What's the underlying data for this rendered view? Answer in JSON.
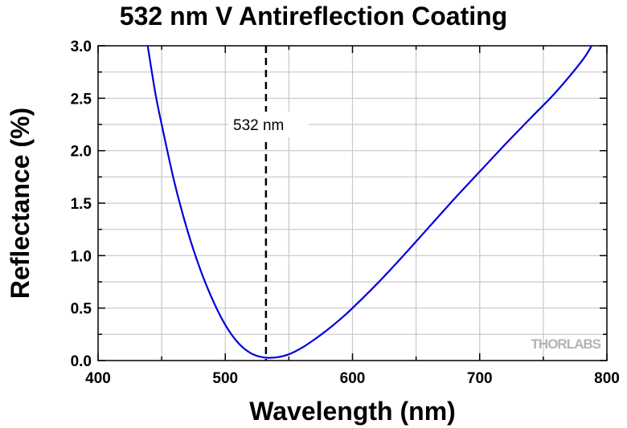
{
  "chart_data": {
    "type": "line",
    "title": "532 nm V Antireflection Coating",
    "xlabel": "Wavelength (nm)",
    "ylabel": "Reflectance (%)",
    "xlim": [
      400,
      800
    ],
    "ylim": [
      0,
      3.0
    ],
    "x_ticks": [
      "400",
      "500",
      "600",
      "700",
      "800"
    ],
    "y_ticks": [
      "0.0",
      "0.5",
      "1.0",
      "1.5",
      "2.0",
      "2.5",
      "3.0"
    ],
    "grid": true,
    "series": [
      {
        "color": "#0000dd",
        "x": [
          439,
          445,
          450,
          460,
          470,
          480,
          490,
          500,
          510,
          520,
          530,
          540,
          550,
          560,
          570,
          580,
          590,
          600,
          620,
          640,
          660,
          680,
          700,
          720,
          740,
          760,
          780,
          788
        ],
        "y": [
          3.0,
          2.55,
          2.25,
          1.7,
          1.25,
          0.88,
          0.58,
          0.34,
          0.17,
          0.07,
          0.03,
          0.03,
          0.06,
          0.12,
          0.2,
          0.29,
          0.39,
          0.5,
          0.74,
          1.0,
          1.27,
          1.54,
          1.8,
          2.06,
          2.31,
          2.56,
          2.85,
          3.0
        ]
      }
    ],
    "annotations": [
      {
        "text": "532 nm",
        "x": 532,
        "line": "vertical-dashed"
      }
    ],
    "watermark": {
      "text": "THORLABS"
    }
  }
}
